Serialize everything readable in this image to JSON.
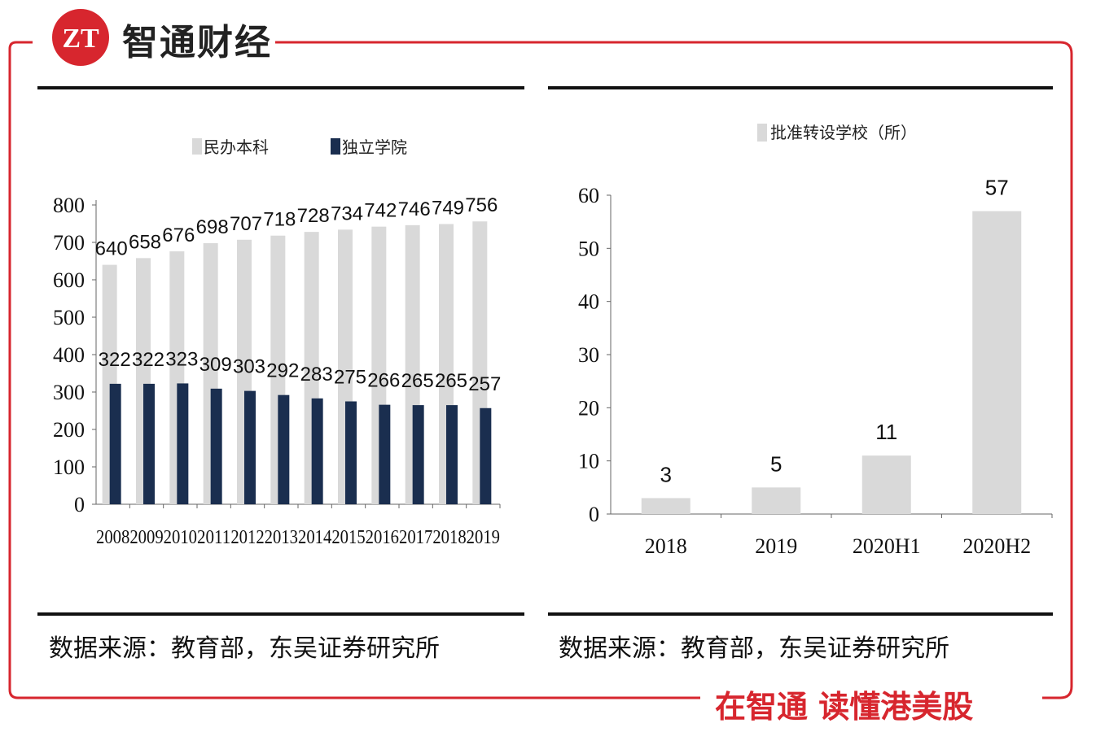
{
  "brand": {
    "name": "智通财经",
    "logo_text": "ZT",
    "slogan": "在智通 读懂港美股",
    "color": "#d7262e"
  },
  "chart_data": [
    {
      "type": "bar",
      "categories": [
        "2008",
        "2009",
        "2010",
        "2011",
        "2012",
        "2013",
        "2014",
        "2015",
        "2016",
        "2017",
        "2018",
        "2019"
      ],
      "series": [
        {
          "name": "民办本科",
          "color": "#d9d9d9",
          "values": [
            640,
            658,
            676,
            698,
            707,
            718,
            728,
            734,
            742,
            746,
            749,
            756
          ]
        },
        {
          "name": "独立学院",
          "color": "#1a2e4f",
          "values": [
            322,
            322,
            323,
            309,
            303,
            292,
            283,
            275,
            266,
            265,
            265,
            257
          ]
        }
      ],
      "ylim": [
        0,
        800
      ],
      "yticks": [
        0,
        100,
        200,
        300,
        400,
        500,
        600,
        700,
        800
      ],
      "source": "数据来源：教育部，东吴证券研究所"
    },
    {
      "type": "bar",
      "categories": [
        "2018",
        "2019",
        "2020H1",
        "2020H2"
      ],
      "series": [
        {
          "name": "批准转设学校（所）",
          "color": "#d9d9d9",
          "values": [
            3,
            5,
            11,
            57
          ]
        }
      ],
      "ylim": [
        0,
        60
      ],
      "yticks": [
        0,
        10,
        20,
        30,
        40,
        50,
        60
      ],
      "source": "数据来源：教育部，东吴证券研究所"
    }
  ]
}
